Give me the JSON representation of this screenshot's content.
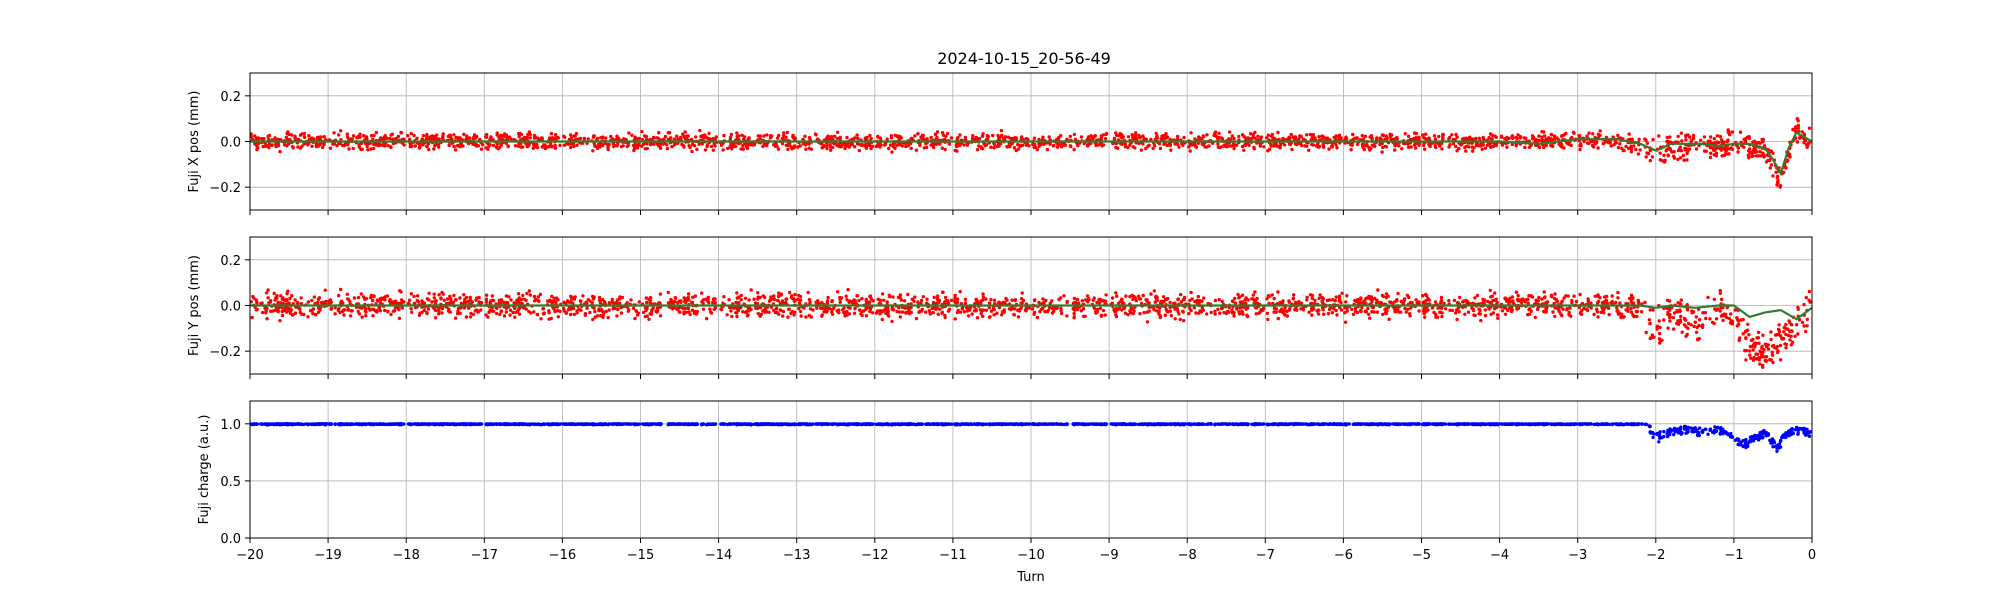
{
  "chart_data": [
    {
      "type": "scatter",
      "title": "2024-10-15_20-56-49",
      "xlabel": "",
      "ylabel": "Fuji X pos (mm)",
      "xlim": [
        -20,
        0
      ],
      "ylim": [
        -0.3,
        0.3
      ],
      "yticks": [
        -0.2,
        0.0,
        0.2
      ],
      "ytick_labels": [
        "−0.2",
        "0.0",
        "0.2"
      ],
      "grid": true,
      "series": [
        {
          "color": "#ff0000",
          "kind": "points",
          "spread": 0.03,
          "x": [
            -20,
            -19,
            -18,
            -17,
            -16,
            -15,
            -14,
            -13,
            -12,
            -11,
            -10,
            -9,
            -8,
            -7,
            -6,
            -5,
            -4,
            -3.5,
            -3.0,
            -2.5,
            -2.2,
            -2.0,
            -1.8,
            -1.6,
            -1.4,
            -1.2,
            -1.0,
            -0.8,
            -0.6,
            -0.5,
            -0.4,
            -0.3,
            -0.2,
            -0.1,
            0
          ],
          "y": [
            0.0,
            0.0,
            0.0,
            0.0,
            0.0,
            0.0,
            0.0,
            0.0,
            0.0,
            0.0,
            0.0,
            0.0,
            0.0,
            0.0,
            0.0,
            0.0,
            0.0,
            0.0,
            0.01,
            0.0,
            -0.02,
            -0.05,
            -0.02,
            -0.01,
            0.0,
            -0.02,
            -0.01,
            -0.02,
            -0.05,
            -0.1,
            -0.18,
            -0.05,
            0.05,
            0.02,
            0.0
          ]
        },
        {
          "color": "#2e7d32",
          "kind": "line",
          "x": [
            -20,
            -19,
            -18,
            -17,
            -16,
            -15,
            -14,
            -13,
            -12,
            -11,
            -10,
            -9,
            -8,
            -7,
            -6,
            -5,
            -4,
            -3.5,
            -3.0,
            -2.5,
            -2.2,
            -2.0,
            -1.8,
            -1.6,
            -1.4,
            -1.2,
            -1.0,
            -0.8,
            -0.6,
            -0.5,
            -0.4,
            -0.3,
            -0.2,
            -0.1,
            0
          ],
          "y": [
            0.0,
            0.0,
            0.0,
            0.0,
            0.0,
            0.0,
            0.0,
            0.0,
            0.0,
            0.0,
            0.0,
            0.0,
            0.0,
            0.0,
            0.0,
            0.0,
            0.0,
            -0.01,
            0.01,
            0.01,
            -0.01,
            -0.04,
            -0.01,
            -0.01,
            -0.01,
            -0.02,
            -0.01,
            -0.01,
            -0.03,
            -0.08,
            -0.14,
            -0.03,
            0.04,
            0.02,
            0.0
          ]
        }
      ]
    },
    {
      "type": "scatter",
      "title": "",
      "xlabel": "",
      "ylabel": "Fuji Y pos (mm)",
      "xlim": [
        -20,
        0
      ],
      "ylim": [
        -0.3,
        0.3
      ],
      "yticks": [
        -0.2,
        0.0,
        0.2
      ],
      "ytick_labels": [
        "−0.2",
        "0.0",
        "0.2"
      ],
      "grid": true,
      "series": [
        {
          "color": "#ff0000",
          "kind": "points",
          "spread": 0.045,
          "x": [
            -20,
            -19,
            -18,
            -17,
            -16,
            -15,
            -14,
            -13,
            -12,
            -11,
            -10,
            -9,
            -8,
            -7,
            -6,
            -5,
            -4,
            -3,
            -2.2,
            -2.0,
            -1.8,
            -1.5,
            -1.2,
            -1.0,
            -0.8,
            -0.6,
            -0.4,
            -0.2,
            0
          ],
          "y": [
            0.0,
            0.0,
            0.0,
            0.0,
            0.0,
            0.0,
            0.0,
            0.0,
            0.0,
            0.0,
            0.0,
            0.0,
            0.0,
            0.0,
            0.0,
            0.0,
            0.0,
            0.0,
            0.0,
            -0.12,
            -0.03,
            -0.08,
            0.0,
            -0.05,
            -0.18,
            -0.2,
            -0.15,
            -0.1,
            0.0
          ]
        },
        {
          "color": "#2e7d32",
          "kind": "line",
          "x": [
            -20,
            -19,
            -18,
            -17,
            -16,
            -15,
            -14,
            -13,
            -12,
            -11,
            -10,
            -9,
            -8,
            -7,
            -6,
            -5,
            -4,
            -3,
            -2.2,
            -2.0,
            -1.8,
            -1.5,
            -1.2,
            -1.0,
            -0.8,
            -0.6,
            -0.4,
            -0.2,
            0
          ],
          "y": [
            0.0,
            0.0,
            0.0,
            0.0,
            0.0,
            0.0,
            0.0,
            0.0,
            0.0,
            0.0,
            0.0,
            0.0,
            0.0,
            0.0,
            0.0,
            0.0,
            0.0,
            0.0,
            0.0,
            -0.01,
            0.0,
            -0.01,
            0.0,
            0.0,
            -0.05,
            -0.03,
            -0.02,
            -0.06,
            -0.01
          ]
        }
      ]
    },
    {
      "type": "scatter",
      "title": "",
      "xlabel": "Turn",
      "ylabel": "Fuji charge (a.u.)",
      "xlim": [
        -20,
        0
      ],
      "ylim": [
        0.0,
        1.2
      ],
      "yticks": [
        0.0,
        0.5,
        1.0
      ],
      "ytick_labels": [
        "0.0",
        "0.5",
        "1.0"
      ],
      "xticks": [
        -20,
        -19,
        -18,
        -17,
        -16,
        -15,
        -14,
        -13,
        -12,
        -11,
        -10,
        -9,
        -8,
        -7,
        -6,
        -5,
        -4,
        -3,
        -2,
        -1,
        0
      ],
      "xtick_labels": [
        "−20",
        "−19",
        "−18",
        "−17",
        "−16",
        "−15",
        "−14",
        "−13",
        "−12",
        "−11",
        "−10",
        "−9",
        "−8",
        "−7",
        "−6",
        "−5",
        "−4",
        "−3",
        "−2",
        "−1",
        "0"
      ],
      "grid": true,
      "series": [
        {
          "color": "#0000ff",
          "kind": "points",
          "spread": 0.01,
          "x": [
            -20,
            -19,
            -18,
            -17,
            -16,
            -15,
            -14,
            -13,
            -12,
            -11,
            -10,
            -9,
            -8,
            -7,
            -6,
            -5,
            -4,
            -3,
            -2.1,
            -2.0,
            -1.8,
            -1.6,
            -1.4,
            -1.2,
            -1.0,
            -0.9,
            -0.8,
            -0.6,
            -0.45,
            -0.35,
            -0.2,
            0
          ],
          "y": [
            1.0,
            1.0,
            1.0,
            1.0,
            1.0,
            1.0,
            1.0,
            1.0,
            1.0,
            1.0,
            1.0,
            1.0,
            1.0,
            1.0,
            1.0,
            1.0,
            1.0,
            1.0,
            1.0,
            0.92,
            0.96,
            0.98,
            0.96,
            0.98,
            0.9,
            0.85,
            0.88,
            0.95,
            0.82,
            0.92,
            0.98,
            0.95
          ]
        }
      ]
    }
  ]
}
